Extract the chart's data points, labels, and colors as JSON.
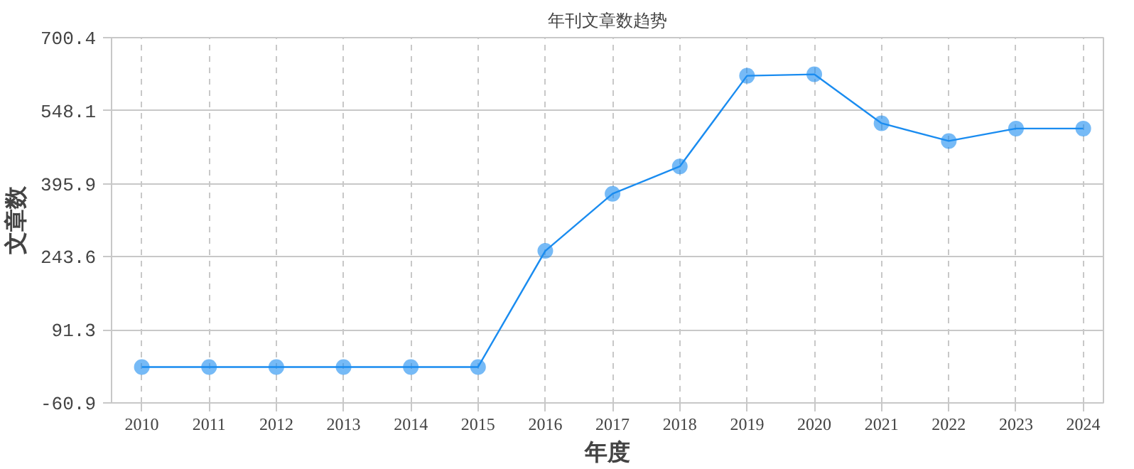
{
  "chart_data": {
    "type": "line",
    "title": "年刊文章数趋势",
    "xlabel": "年度",
    "ylabel": "文章数",
    "categories": [
      "2010",
      "2011",
      "2012",
      "2013",
      "2014",
      "2015",
      "2016",
      "2017",
      "2018",
      "2019",
      "2020",
      "2021",
      "2022",
      "2023",
      "2024"
    ],
    "series": [
      {
        "color": "#1a8cf0",
        "values": [
          14,
          14,
          14,
          14,
          14,
          14,
          256,
          375,
          432,
          621,
          624,
          522,
          485,
          511,
          511
        ]
      }
    ],
    "ylim": [
      -60.9,
      700.4
    ],
    "yticks": [
      -60.9,
      91.3,
      243.6,
      395.9,
      548.1,
      700.4
    ],
    "grid": true,
    "marker": "circle",
    "line_style": "solid"
  }
}
